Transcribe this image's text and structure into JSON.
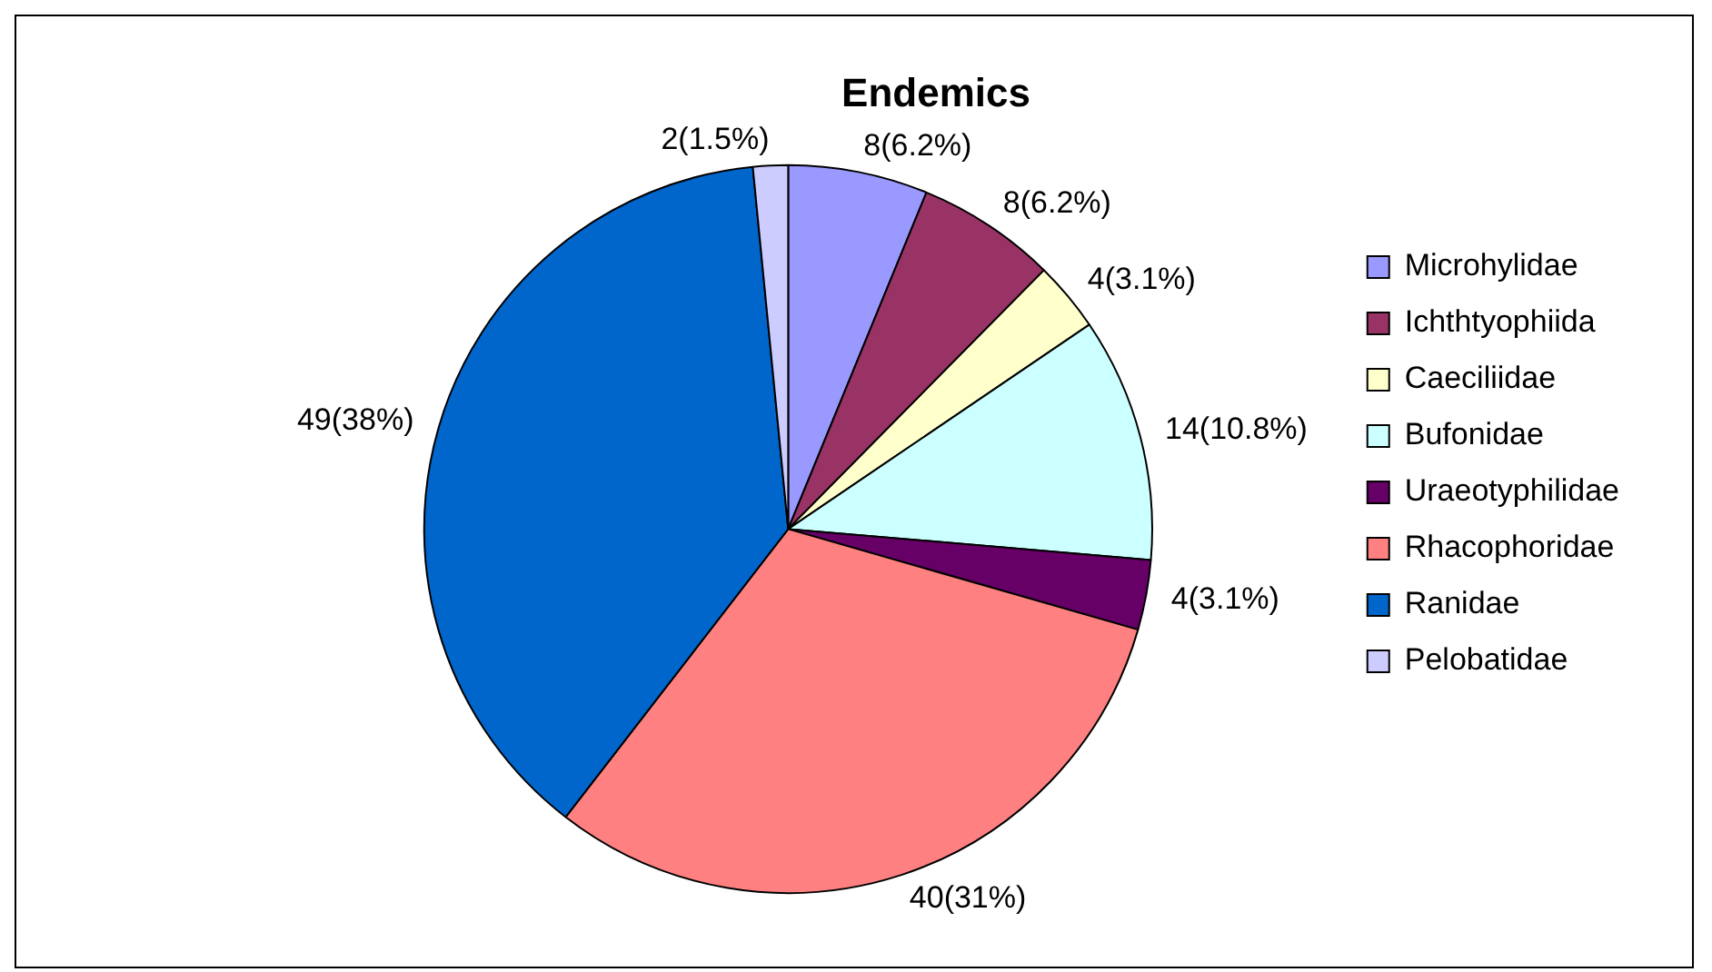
{
  "chart_data": {
    "type": "pie",
    "title": "Endemics",
    "categories": [
      "Microhylidae",
      "Ichthtyophiida",
      "Caeciliidae",
      "Bufonidae",
      "Uraeotyphilidae",
      "Rhacophoridae",
      "Ranidae",
      "Pelobatidae"
    ],
    "values": [
      8,
      8,
      4,
      14,
      4,
      40,
      49,
      2
    ],
    "value_labels": [
      "8(6.2%)",
      "8(6.2%)",
      "4(3.1%)",
      "14(10.8%)",
      "4(3.1%)",
      "40(31%)",
      "49(38%)",
      "2(1.5%)"
    ],
    "colors": [
      "#9999ff",
      "#993366",
      "#ffffcc",
      "#ccffff",
      "#660066",
      "#ff8080",
      "#0066cc",
      "#ccccff"
    ],
    "legend": "right"
  }
}
